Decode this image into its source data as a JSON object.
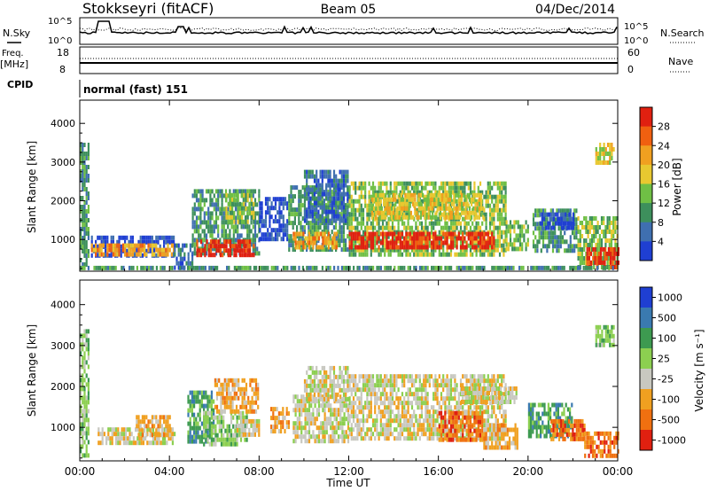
{
  "header": {
    "station": "Stokkseyri (fitACF)",
    "beam": "Beam 05",
    "date": "04/Dec/2014"
  },
  "status_panels": {
    "nsky": {
      "label": "N.Sky",
      "left_ticks": [
        "10^5",
        "10^0"
      ]
    },
    "nsearch": {
      "label": "N.Search",
      "right_ticks": [
        "10^5",
        "10^0"
      ]
    },
    "freq": {
      "label_top": "Freq.",
      "label_bottom": "[MHz]",
      "left_ticks": [
        "18",
        "8"
      ]
    },
    "nave": {
      "label": "Nave",
      "right_ticks": [
        "60",
        "0"
      ]
    },
    "cpid": {
      "label": "CPID",
      "value": "normal (fast) 151"
    }
  },
  "colors": {
    "power": [
      "#1f3fd2",
      "#3f6fb0",
      "#3d8f5c",
      "#6fbf45",
      "#e8c830",
      "#f0a020",
      "#f06010",
      "#e02010"
    ],
    "velocity": [
      "#1f3fd2",
      "#3a7ab0",
      "#3d9a50",
      "#8ccf50",
      "#c8c8c0",
      "#f0a020",
      "#f07010",
      "#e02010"
    ]
  },
  "chart_data": [
    {
      "type": "heatmap",
      "name": "power",
      "ylabel": "Slant Range [km]",
      "yticks": [
        "1000",
        "2000",
        "3000",
        "4000"
      ],
      "ylim": [
        180,
        4600
      ],
      "xlim": [
        0,
        24
      ],
      "colorbar_label": "Power [dB]",
      "colorbar_ticks": [
        "4",
        "8",
        "12",
        "16",
        "20",
        "24",
        "28"
      ],
      "bands": [
        {
          "x0": 0.0,
          "x1": 0.4,
          "y0": 350,
          "y1": 3500,
          "level": 2
        },
        {
          "x0": 0.5,
          "x1": 4.2,
          "y0": 600,
          "y1": 1100,
          "level": 0
        },
        {
          "x0": 0.5,
          "x1": 4.2,
          "y0": 650,
          "y1": 900,
          "level": 5
        },
        {
          "x0": 4.2,
          "x1": 5.0,
          "y0": 300,
          "y1": 900,
          "level": 1
        },
        {
          "x0": 5.0,
          "x1": 8.0,
          "y0": 600,
          "y1": 2300,
          "level": 2
        },
        {
          "x0": 5.2,
          "x1": 7.8,
          "y0": 600,
          "y1": 1000,
          "level": 7
        },
        {
          "x0": 6.5,
          "x1": 7.8,
          "y0": 1500,
          "y1": 2200,
          "level": 3
        },
        {
          "x0": 8.0,
          "x1": 9.3,
          "y0": 1000,
          "y1": 2100,
          "level": 0
        },
        {
          "x0": 9.3,
          "x1": 12.0,
          "y0": 700,
          "y1": 2400,
          "level": 2
        },
        {
          "x0": 9.5,
          "x1": 11.5,
          "y0": 800,
          "y1": 1200,
          "level": 5
        },
        {
          "x0": 10.0,
          "x1": 12.0,
          "y0": 1500,
          "y1": 2800,
          "level": 1
        },
        {
          "x0": 12.0,
          "x1": 19.0,
          "y0": 650,
          "y1": 2500,
          "level": 3
        },
        {
          "x0": 12.0,
          "x1": 18.5,
          "y0": 800,
          "y1": 1200,
          "level": 7
        },
        {
          "x0": 13.0,
          "x1": 18.0,
          "y0": 1600,
          "y1": 2200,
          "level": 4
        },
        {
          "x0": 19.0,
          "x1": 20.0,
          "y0": 700,
          "y1": 1500,
          "level": 3
        },
        {
          "x0": 20.2,
          "x1": 22.2,
          "y0": 700,
          "y1": 1800,
          "level": 2
        },
        {
          "x0": 20.5,
          "x1": 22.0,
          "y0": 1300,
          "y1": 1700,
          "level": 0
        },
        {
          "x0": 22.2,
          "x1": 24.0,
          "y0": 300,
          "y1": 1600,
          "level": 3
        },
        {
          "x0": 22.6,
          "x1": 24.0,
          "y0": 300,
          "y1": 800,
          "level": 7
        },
        {
          "x0": 23.0,
          "x1": 23.8,
          "y0": 3000,
          "y1": 3500,
          "level": 4
        },
        {
          "x0": 0.0,
          "x1": 24.0,
          "y0": 220,
          "y1": 320,
          "level": 2
        }
      ]
    },
    {
      "type": "heatmap",
      "name": "velocity",
      "ylabel": "Slant Range [km]",
      "yticks": [
        "1000",
        "2000",
        "3000",
        "4000"
      ],
      "ylim": [
        180,
        4600
      ],
      "xlim": [
        0,
        24
      ],
      "xticks": [
        "00:00",
        "04:00",
        "08:00",
        "12:00",
        "16:00",
        "20:00",
        "00:00"
      ],
      "xlabel": "Time UT",
      "colorbar_label": "Velocity [m s⁻¹]",
      "colorbar_ticks": [
        "1000",
        "500",
        "100",
        "25",
        "-25",
        "-100",
        "-500",
        "-1000"
      ],
      "bands": [
        {
          "x0": 0.0,
          "x1": 0.4,
          "y0": 350,
          "y1": 3400,
          "level": 3
        },
        {
          "x0": 0.8,
          "x1": 4.2,
          "y0": 650,
          "y1": 1000,
          "level": 4
        },
        {
          "x0": 2.5,
          "x1": 4.0,
          "y0": 800,
          "y1": 1300,
          "level": 5
        },
        {
          "x0": 4.8,
          "x1": 6.0,
          "y0": 700,
          "y1": 1900,
          "level": 2
        },
        {
          "x0": 5.5,
          "x1": 7.5,
          "y0": 600,
          "y1": 1400,
          "level": 3
        },
        {
          "x0": 6.0,
          "x1": 8.0,
          "y0": 1400,
          "y1": 2200,
          "level": 5
        },
        {
          "x0": 7.0,
          "x1": 8.0,
          "y0": 800,
          "y1": 1200,
          "level": 4
        },
        {
          "x0": 8.5,
          "x1": 9.3,
          "y0": 900,
          "y1": 1500,
          "level": 5
        },
        {
          "x0": 9.5,
          "x1": 12.0,
          "y0": 700,
          "y1": 1800,
          "level": 4
        },
        {
          "x0": 10.0,
          "x1": 12.0,
          "y0": 1700,
          "y1": 2500,
          "level": 4
        },
        {
          "x0": 12.0,
          "x1": 19.0,
          "y0": 700,
          "y1": 2300,
          "level": 4
        },
        {
          "x0": 16.0,
          "x1": 18.0,
          "y0": 700,
          "y1": 1400,
          "level": 6
        },
        {
          "x0": 17.0,
          "x1": 19.5,
          "y0": 1600,
          "y1": 2000,
          "level": 4
        },
        {
          "x0": 18.0,
          "x1": 19.5,
          "y0": 500,
          "y1": 1100,
          "level": 5
        },
        {
          "x0": 20.0,
          "x1": 22.0,
          "y0": 800,
          "y1": 1600,
          "level": 2
        },
        {
          "x0": 21.0,
          "x1": 22.5,
          "y0": 700,
          "y1": 1200,
          "level": 6
        },
        {
          "x0": 22.5,
          "x1": 24.0,
          "y0": 300,
          "y1": 900,
          "level": 6
        },
        {
          "x0": 23.0,
          "x1": 23.8,
          "y0": 3000,
          "y1": 3500,
          "level": 3
        }
      ]
    }
  ]
}
